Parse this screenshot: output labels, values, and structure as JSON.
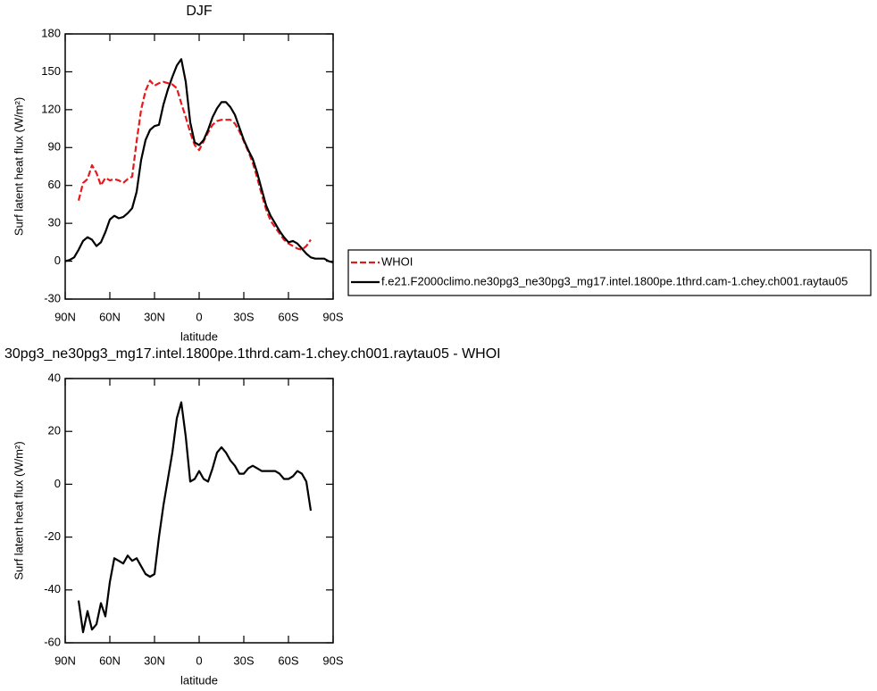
{
  "chart_data": [
    {
      "type": "line",
      "title": "DJF",
      "xlabel": "latitude",
      "ylabel": "Surf latent heat flux (W/m²)",
      "x": [
        90,
        87,
        84,
        81,
        78,
        75,
        72,
        69,
        66,
        63,
        60,
        57,
        54,
        51,
        48,
        45,
        42,
        39,
        36,
        33,
        30,
        27,
        24,
        21,
        18,
        15,
        12,
        9,
        6,
        3,
        0,
        -3,
        -6,
        -9,
        -12,
        -15,
        -18,
        -21,
        -24,
        -27,
        -30,
        -33,
        -36,
        -39,
        -42,
        -45,
        -48,
        -51,
        -54,
        -57,
        -60,
        -63,
        -66,
        -69,
        -72,
        -75,
        -78,
        -81,
        -84,
        -87,
        -90
      ],
      "series": [
        {
          "name": "WHOI",
          "color": "#e41a1c",
          "dash": true,
          "values": [
            null,
            null,
            null,
            48,
            62,
            65,
            76,
            70,
            60,
            66,
            64,
            65,
            64,
            62,
            65,
            67,
            95,
            120,
            135,
            143,
            139,
            141,
            142,
            141,
            140,
            137,
            125,
            114,
            102,
            92,
            88,
            95,
            102,
            108,
            111,
            112,
            112,
            112,
            109,
            103,
            95,
            87,
            78,
            66,
            53,
            41,
            32,
            27,
            22,
            17,
            14,
            12,
            10,
            9,
            12,
            17,
            null,
            null,
            null,
            null,
            null
          ]
        },
        {
          "name": "f.e21.F2000climo.ne30pg3_ne30pg3_mg17.intel.1800pe.1thrd.cam-1.chey.ch001.raytau05",
          "color": "#000000",
          "dash": false,
          "values": [
            0,
            1,
            3,
            9,
            16,
            19,
            17,
            12,
            15,
            23,
            33,
            36,
            34,
            35,
            38,
            42,
            55,
            80,
            96,
            104,
            107,
            108,
            124,
            136,
            146,
            155,
            160,
            142,
            110,
            94,
            92,
            96,
            104,
            114,
            121,
            126,
            126,
            122,
            116,
            106,
            96,
            88,
            81,
            70,
            57,
            44,
            36,
            30,
            24,
            19,
            15,
            16,
            14,
            10,
            6,
            3,
            2,
            2,
            2,
            0,
            -1
          ]
        }
      ],
      "xlim": [
        90,
        -90
      ],
      "xticks": [
        {
          "value": 90,
          "label": "90N"
        },
        {
          "value": 60,
          "label": "60N"
        },
        {
          "value": 30,
          "label": "30N"
        },
        0,
        {
          "value": -30,
          "label": "30S"
        },
        {
          "value": -60,
          "label": "60S"
        },
        {
          "value": -90,
          "label": "90S"
        }
      ],
      "ylim": [
        -30,
        180
      ],
      "yticks": [
        -30,
        0,
        30,
        60,
        90,
        120,
        150,
        180
      ],
      "legend": "right"
    },
    {
      "type": "line",
      "title": "30pg3_ne30pg3_mg17.intel.1800pe.1thrd.cam-1.chey.ch001.raytau05 - WHOI",
      "xlabel": "latitude",
      "ylabel": "Surf latent heat flux (W/m²)",
      "x": [
        81,
        78,
        75,
        72,
        69,
        66,
        63,
        60,
        57,
        54,
        51,
        48,
        45,
        42,
        39,
        36,
        33,
        30,
        27,
        24,
        21,
        18,
        15,
        12,
        9,
        6,
        3,
        0,
        -3,
        -6,
        -9,
        -12,
        -15,
        -18,
        -21,
        -24,
        -27,
        -30,
        -33,
        -36,
        -39,
        -42,
        -45,
        -48,
        -51,
        -54,
        -57,
        -60,
        -63,
        -66,
        -69,
        -72,
        -75
      ],
      "values": [
        -44,
        -56,
        -48,
        -55,
        -53,
        -45,
        -50,
        -37,
        -28,
        -29,
        -30,
        -27,
        -29,
        -28,
        -31,
        -34,
        -35,
        -34,
        -20,
        -8,
        2,
        12,
        25,
        31,
        18,
        1,
        2,
        5,
        2,
        1,
        6,
        12,
        14,
        12,
        9,
        7,
        4,
        4,
        6,
        7,
        6,
        5,
        5,
        5,
        5,
        4,
        2,
        2,
        3,
        5,
        4,
        1,
        -10
      ],
      "color": "#000000",
      "xlim": [
        90,
        -90
      ],
      "xticks": [
        {
          "value": 90,
          "label": "90N"
        },
        {
          "value": 60,
          "label": "60N"
        },
        {
          "value": 30,
          "label": "30N"
        },
        0,
        {
          "value": -30,
          "label": "30S"
        },
        {
          "value": -60,
          "label": "60S"
        },
        {
          "value": -90,
          "label": "90S"
        }
      ],
      "ylim": [
        -60,
        40
      ],
      "yticks": [
        -60,
        -40,
        -20,
        0,
        20,
        40
      ]
    }
  ]
}
